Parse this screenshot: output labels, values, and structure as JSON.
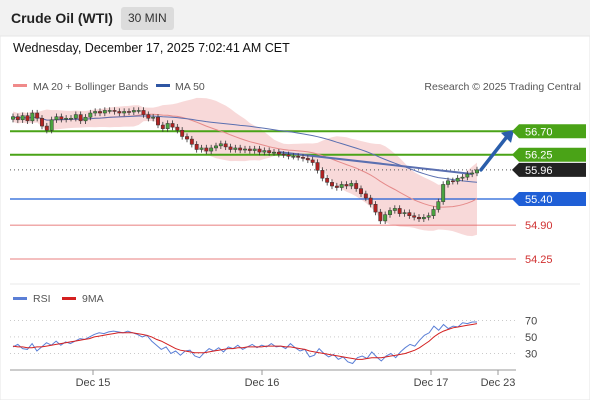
{
  "header": {
    "title": "Crude Oil (WTI)",
    "interval": "30 MIN"
  },
  "datetime": "Wednesday, December 17, 2025 7:02:41 AM CET",
  "legend": {
    "ma20": "MA 20 + Bollinger Bands",
    "ma50": "MA 50",
    "copyright": "Research © 2025 Trading Central",
    "rsi": "RSI",
    "rsi_ma": "9MA"
  },
  "colors": {
    "up": "#4aa340",
    "down": "#b22222",
    "bands": "#f6cccc",
    "ma20": "#e58a8a",
    "ma50": "#5a6fb0",
    "green_level": "#4aa317",
    "blue_level": "#1f5fd6",
    "red_level": "#e05555",
    "arrow": "#2a5eab",
    "rsi": "#5b7fd6",
    "rsi_ma": "#d42020"
  },
  "chart_data": [
    {
      "type": "line",
      "subtype": "candlestick",
      "ylim": [
        54.0,
        57.3
      ],
      "levels": [
        {
          "value": 56.7,
          "label": "56.70",
          "style": "green-box"
        },
        {
          "value": 56.25,
          "label": "56.25",
          "style": "green-box"
        },
        {
          "value": 55.96,
          "label": "55.96",
          "style": "dark-box"
        },
        {
          "value": 55.4,
          "label": "55.40",
          "style": "blue-box"
        },
        {
          "value": 54.9,
          "label": "54.90",
          "style": "red-text"
        },
        {
          "value": 54.25,
          "label": "54.25",
          "style": "red-text"
        }
      ],
      "candles": [
        56.98,
        56.92,
        57.0,
        56.9,
        57.05,
        56.95,
        56.8,
        56.72,
        56.92,
        56.98,
        56.93,
        56.95,
        56.95,
        57.02,
        56.9,
        56.97,
        57.05,
        57.08,
        57.05,
        57.1,
        57.1,
        57.08,
        57.05,
        57.08,
        57.07,
        57.1,
        57.1,
        57.02,
        56.95,
        56.97,
        56.82,
        56.75,
        56.85,
        56.78,
        56.72,
        56.6,
        56.55,
        56.45,
        56.35,
        56.38,
        56.32,
        56.38,
        56.42,
        56.46,
        56.4,
        56.35,
        56.38,
        56.34,
        56.36,
        56.33,
        56.36,
        56.3,
        56.33,
        56.29,
        56.3,
        56.26,
        56.25,
        56.22,
        56.22,
        56.2,
        56.18,
        56.15,
        56.1,
        55.95,
        55.8,
        55.72,
        55.65,
        55.62,
        55.68,
        55.65,
        55.7,
        55.6,
        55.5,
        55.42,
        55.3,
        55.15,
        54.98,
        55.1,
        55.18,
        55.22,
        55.12,
        55.14,
        55.08,
        55.05,
        55.02,
        55.05,
        55.08,
        55.2,
        55.35,
        55.68,
        55.75,
        55.74,
        55.8,
        55.82,
        55.88,
        55.9,
        55.96
      ],
      "ma20_end_label": null,
      "arrow": {
        "from": 55.96,
        "to": 56.65,
        "direction": "up"
      },
      "xlabels": [
        "Dec 15",
        "Dec 16",
        "Dec 17",
        "Dec 23"
      ]
    },
    {
      "type": "line",
      "name": "RSI",
      "ylim": [
        15,
        80
      ],
      "gridlines": [
        70,
        50,
        30
      ],
      "tick_labels": [
        "70",
        "50",
        "30"
      ],
      "series": [
        {
          "name": "RSI",
          "values": [
            38,
            41,
            36,
            35,
            42,
            33,
            38,
            43,
            40,
            45,
            40,
            44,
            42,
            45,
            48,
            47,
            50,
            53,
            55,
            54,
            56,
            57,
            56,
            55,
            57,
            55,
            53,
            50,
            52,
            45,
            40,
            35,
            38,
            30,
            33,
            28,
            33,
            34,
            27,
            25,
            31,
            36,
            33,
            37,
            32,
            38,
            36,
            40,
            35,
            38,
            41,
            37,
            40,
            38,
            42,
            38,
            39,
            36,
            42,
            37,
            33,
            35,
            26,
            28,
            36,
            30,
            26,
            29,
            23,
            26,
            20,
            18,
            25,
            27,
            24,
            32,
            26,
            21,
            27,
            30,
            25,
            32,
            37,
            41,
            39,
            46,
            52,
            55,
            63,
            58,
            65,
            60,
            63,
            62,
            67,
            66,
            68,
            68
          ]
        },
        {
          "name": "9MA",
          "values": [
            39,
            38,
            38,
            37,
            37,
            38,
            38,
            39,
            40,
            41,
            42,
            43,
            44,
            45,
            46,
            47,
            48,
            50,
            51,
            52,
            53,
            54,
            55,
            55,
            55,
            55,
            54,
            53,
            52,
            50,
            47,
            45,
            42,
            39,
            36,
            34,
            33,
            32,
            31,
            31,
            31,
            32,
            33,
            34,
            35,
            36,
            36,
            37,
            37,
            38,
            38,
            38,
            38,
            39,
            39,
            39,
            39,
            38,
            38,
            37,
            36,
            35,
            33,
            32,
            31,
            30,
            29,
            28,
            27,
            26,
            25,
            24,
            23,
            23,
            24,
            25,
            25,
            25,
            26,
            27,
            28,
            29,
            30,
            32,
            34,
            37,
            41,
            45,
            50,
            54,
            57,
            59,
            61,
            62,
            63,
            64,
            65,
            66
          ]
        }
      ]
    }
  ]
}
